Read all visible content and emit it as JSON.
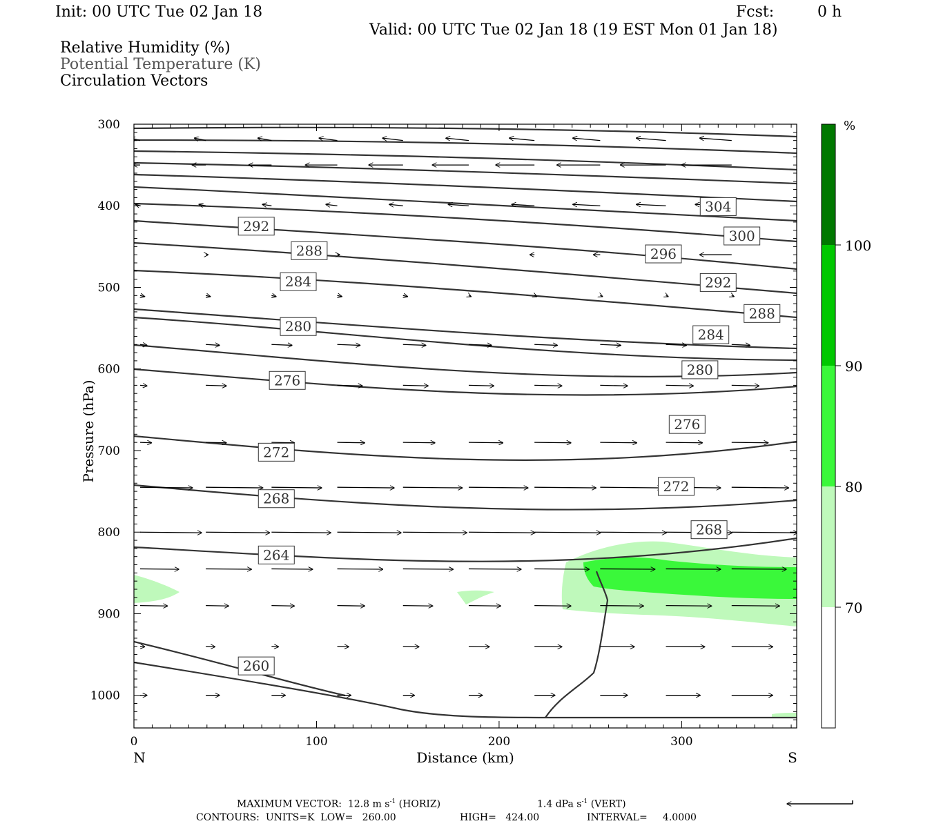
{
  "header": {
    "init": "Init: 00 UTC Tue 02 Jan 18",
    "fcst_label": "Fcst:",
    "fcst_value": "0 h",
    "valid": "Valid: 00 UTC Tue 02 Jan 18 (19 EST Mon 01 Jan 18)"
  },
  "legend": {
    "rh": "Relative Humidity (%)",
    "theta": "Potential Temperature (K)",
    "vectors": "Circulation Vectors"
  },
  "chart_data": {
    "type": "contour",
    "xlabel": "Distance (km)",
    "ylabel": "Pressure (hPa)",
    "xlim": [
      0,
      363
    ],
    "ylim": [
      1040,
      300
    ],
    "x_ticks": [
      0,
      100,
      200,
      300
    ],
    "y_ticks": [
      300,
      400,
      500,
      600,
      700,
      800,
      900,
      1000
    ],
    "x_end_labels": {
      "left": "N",
      "right": "S"
    },
    "colorbar": {
      "unit": "%",
      "levels": [
        70,
        80,
        90,
        100
      ],
      "colors": [
        "#ffffff",
        "#bff9bb",
        "#3af83a",
        "#00c800",
        "#007800"
      ]
    },
    "contour_labels": [
      {
        "value": "304",
        "x": 320,
        "p": 401
      },
      {
        "value": "300",
        "x": 333,
        "p": 437
      },
      {
        "value": "296",
        "x": 290,
        "p": 459
      },
      {
        "value": "292",
        "x": 67,
        "p": 425
      },
      {
        "value": "292",
        "x": 320,
        "p": 494
      },
      {
        "value": "288",
        "x": 96,
        "p": 455
      },
      {
        "value": "288",
        "x": 344,
        "p": 532
      },
      {
        "value": "284",
        "x": 90,
        "p": 493
      },
      {
        "value": "284",
        "x": 316,
        "p": 558
      },
      {
        "value": "280",
        "x": 90,
        "p": 548
      },
      {
        "value": "280",
        "x": 310,
        "p": 601
      },
      {
        "value": "276",
        "x": 84,
        "p": 614
      },
      {
        "value": "276",
        "x": 303,
        "p": 668
      },
      {
        "value": "272",
        "x": 78,
        "p": 702
      },
      {
        "value": "272",
        "x": 297,
        "p": 744
      },
      {
        "value": "268",
        "x": 78,
        "p": 759
      },
      {
        "value": "268",
        "x": 315,
        "p": 797
      },
      {
        "value": "264",
        "x": 78,
        "p": 828
      },
      {
        "value": "260",
        "x": 67,
        "p": 964
      }
    ],
    "max_vector": {
      "label": "MAXIMUM VECTOR:",
      "horiz": "12.8 m s",
      "horiz_sup": "-1",
      "horiz_tag": "(HORIZ)",
      "vert": "1.4 dPa s",
      "vert_sup": "-1",
      "vert_tag": "(VERT)"
    },
    "contours_info": {
      "label": "CONTOURS:",
      "units": "UNITS=K",
      "low": "LOW=   260.00",
      "high": "HIGH=   424.00",
      "interval": "INTERVAL=     4.0000"
    }
  }
}
